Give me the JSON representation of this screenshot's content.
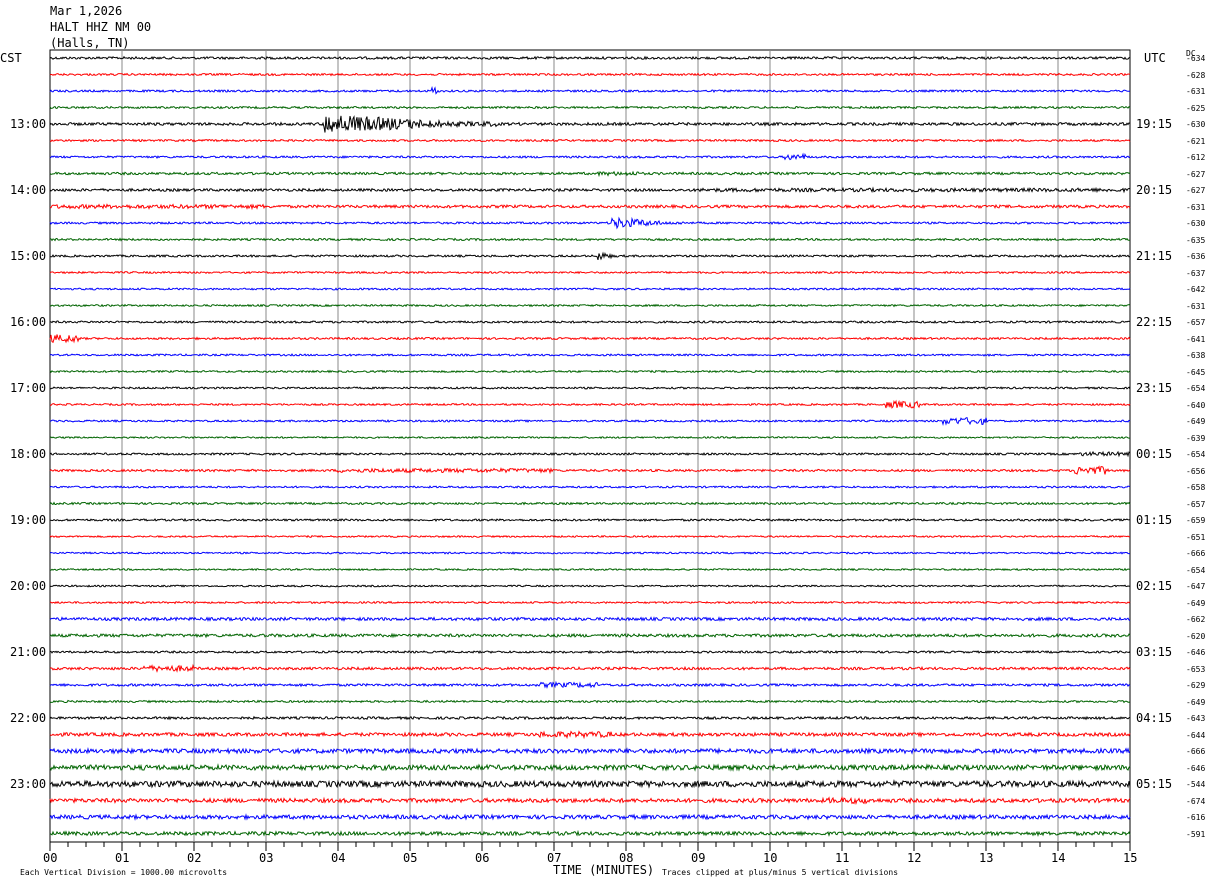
{
  "header": {
    "date": "Mar 1,2026",
    "station": "HALT HHZ NM 00",
    "location": "(Halls, TN)"
  },
  "left_timezone": "CST",
  "right_timezone": "UTC",
  "dc_label": "DC",
  "footer": {
    "scale_note": "Each Vertical Division = 1000.00 microvolts",
    "xlabel": "TIME (MINUTES)",
    "clip_note": "Traces clipped at plus/minus 5 vertical divisions"
  },
  "colors": {
    "trace_cycle": [
      "#000000",
      "#ff0000",
      "#0000ff",
      "#006400"
    ]
  },
  "chart_data": {
    "type": "line",
    "title": "",
    "xlabel": "TIME (MINUTES)",
    "ylabel": "",
    "xlim": [
      0,
      15
    ],
    "x_ticks": [
      "00",
      "01",
      "02",
      "03",
      "04",
      "05",
      "06",
      "07",
      "08",
      "09",
      "10",
      "11",
      "12",
      "13",
      "14",
      "15"
    ],
    "left_hour_labels": [
      "13:00",
      "14:00",
      "15:00",
      "16:00",
      "17:00",
      "18:00",
      "19:00",
      "20:00",
      "21:00",
      "22:00",
      "23:00"
    ],
    "right_hour_labels": [
      "19:15",
      "20:15",
      "21:15",
      "22:15",
      "23:15",
      "00:15",
      "01:15",
      "02:15",
      "03:15",
      "04:15",
      "05:15"
    ],
    "trace_count": 48,
    "dc_offsets": [
      "-634",
      "-628",
      "-631",
      "-625",
      "-630",
      "-621",
      "-612",
      "-627",
      "-627",
      "-631",
      "-630",
      "-635",
      "-636",
      "-637",
      "-642",
      "-631",
      "-657",
      "-641",
      "-638",
      "-645",
      "-654",
      "-640",
      "-649",
      "-639",
      "-654",
      "-656",
      "-658",
      "-657",
      "-659",
      "-651",
      "-666",
      "-654",
      "-647",
      "-649",
      "-662",
      "-620",
      "-646",
      "-653",
      "-629",
      "-649",
      "-643",
      "-644",
      "-666",
      "-646",
      "-544",
      "-674",
      "-616",
      "-591"
    ],
    "noise_levels": [
      1.2,
      1.0,
      1.0,
      1.0,
      1.4,
      1.0,
      1.0,
      1.2,
      1.3,
      1.4,
      1.0,
      1.0,
      1.0,
      0.9,
      0.9,
      0.9,
      1.0,
      1.0,
      0.9,
      0.9,
      0.9,
      0.9,
      0.9,
      0.8,
      1.0,
      1.1,
      0.9,
      1.0,
      1.0,
      0.8,
      0.8,
      0.8,
      0.8,
      0.9,
      1.5,
      1.5,
      1.0,
      1.3,
      1.2,
      1.0,
      1.2,
      1.7,
      2.2,
      2.5,
      3.0,
      2.0,
      2.0,
      1.8
    ],
    "events": [
      {
        "trace": 0,
        "start_min": 0.0,
        "end_min": 15.0,
        "amp": 1.2
      },
      {
        "trace": 2,
        "start_min": 5.3,
        "end_min": 5.4,
        "amp": 4.0
      },
      {
        "trace": 4,
        "start_min": 3.8,
        "end_min": 6.2,
        "amp": 10.0
      },
      {
        "trace": 6,
        "start_min": 10.2,
        "end_min": 10.5,
        "amp": 3.0
      },
      {
        "trace": 7,
        "start_min": 7.6,
        "end_min": 8.2,
        "amp": 2.0
      },
      {
        "trace": 8,
        "start_min": 9.0,
        "end_min": 15.0,
        "amp": 1.8
      },
      {
        "trace": 9,
        "start_min": 0.0,
        "end_min": 3.0,
        "amp": 2.0
      },
      {
        "trace": 10,
        "start_min": 7.8,
        "end_min": 8.8,
        "amp": 6.0
      },
      {
        "trace": 12,
        "start_min": 7.6,
        "end_min": 7.9,
        "amp": 5.0
      },
      {
        "trace": 17,
        "start_min": 0.0,
        "end_min": 0.4,
        "amp": 4.0
      },
      {
        "trace": 21,
        "start_min": 11.6,
        "end_min": 12.1,
        "amp": 3.5
      },
      {
        "trace": 22,
        "start_min": 12.4,
        "end_min": 13.0,
        "amp": 3.5
      },
      {
        "trace": 24,
        "start_min": 14.3,
        "end_min": 15.0,
        "amp": 2.0
      },
      {
        "trace": 25,
        "start_min": 4.0,
        "end_min": 7.0,
        "amp": 2.0
      },
      {
        "trace": 25,
        "start_min": 14.2,
        "end_min": 14.7,
        "amp": 4.0
      },
      {
        "trace": 37,
        "start_min": 1.3,
        "end_min": 2.0,
        "amp": 3.0
      },
      {
        "trace": 38,
        "start_min": 6.8,
        "end_min": 7.6,
        "amp": 2.5
      },
      {
        "trace": 41,
        "start_min": 6.8,
        "end_min": 7.8,
        "amp": 3.0
      },
      {
        "trace": 45,
        "start_min": 10.8,
        "end_min": 11.4,
        "amp": 3.0
      }
    ]
  }
}
